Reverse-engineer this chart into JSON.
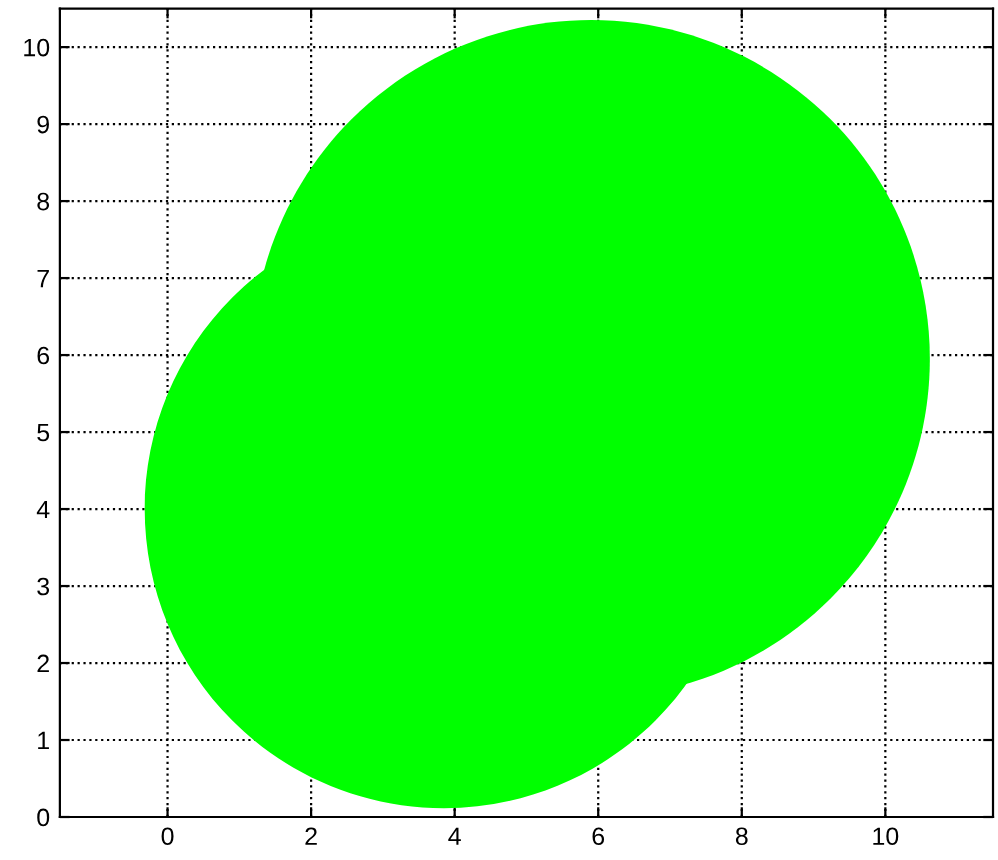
{
  "chart_data": {
    "type": "bubble",
    "x": [
      3.85,
      5.9
    ],
    "values": [
      4.0,
      5.95
    ],
    "sizes": [
      0.78,
      1
    ],
    "color": "#00ff00",
    "marker": "circle",
    "xlim": [
      -1.5,
      11.5
    ],
    "xticks": [
      0,
      2,
      4,
      6,
      8,
      10
    ],
    "ylim": [
      0,
      10.5
    ],
    "yticks": [
      0,
      1,
      2,
      3,
      4,
      5,
      6,
      7,
      8,
      9,
      10
    ],
    "grid": true
  }
}
